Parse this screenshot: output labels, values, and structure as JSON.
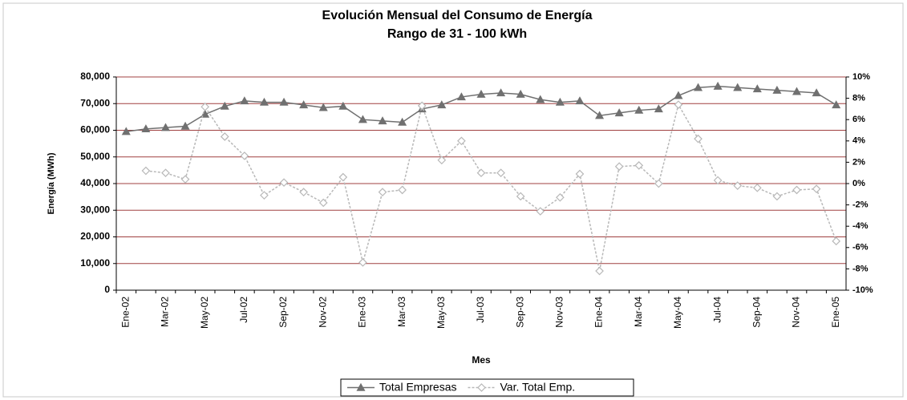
{
  "chart_data": {
    "type": "line",
    "title": "Evolución Mensual del Consumo de Energía",
    "subtitle": "Rango de 31 - 100 kWh",
    "x_label": "Mes",
    "y_label": "Energía (MWh)",
    "categories": [
      "Ene-02",
      null,
      "Mar-02",
      null,
      "May-02",
      null,
      "Jul-02",
      null,
      "Sep-02",
      null,
      "Nov-02",
      null,
      "Ene-03",
      null,
      "Mar-03",
      null,
      "May-03",
      null,
      "Jul-03",
      null,
      "Sep-03",
      null,
      "Nov-03",
      null,
      "Ene-04",
      null,
      "Mar-04",
      null,
      "May-04",
      null,
      "Jul-04",
      null,
      "Sep-04",
      null,
      "Nov-04",
      null,
      "Ene-05"
    ],
    "series": [
      {
        "name": "Total Empresas",
        "color": "#707070",
        "marker": "triangle",
        "values": [
          59500,
          60500,
          61000,
          61500,
          66000,
          69000,
          71000,
          70500,
          70500,
          69500,
          68500,
          69000,
          64000,
          63500,
          63000,
          68000,
          69500,
          72500,
          73500,
          74000,
          73500,
          71500,
          70500,
          71000,
          65500,
          66500,
          67500,
          68000,
          73000,
          76000,
          76500,
          76000,
          75500,
          75000,
          74500,
          74000,
          69500
        ]
      },
      {
        "name": "Var. Total Emp.",
        "color": "#b8b8b8",
        "marker": "diamond",
        "axis": "y2",
        "values": [
          null,
          1.2,
          1.0,
          0.4,
          7.2,
          4.4,
          2.6,
          -1.1,
          0.1,
          -0.8,
          -1.8,
          0.6,
          -7.4,
          -0.8,
          -0.6,
          7.3,
          2.2,
          4.0,
          1.0,
          1.0,
          -1.2,
          -2.6,
          -1.3,
          0.9,
          -8.2,
          1.6,
          1.7,
          0.0,
          7.4,
          4.2,
          0.3,
          -0.2,
          -0.4,
          -1.2,
          -0.6,
          -0.5,
          -5.4
        ]
      }
    ],
    "ylim": [
      0,
      80000
    ],
    "yticks": [
      0,
      {
        "value": 10000,
        "label": "10,000"
      },
      {
        "value": 20000,
        "label": "20,000"
      },
      {
        "value": 30000,
        "label": "30,000"
      },
      {
        "value": 40000,
        "label": "40,000"
      },
      {
        "value": 50000,
        "label": "50,000"
      },
      {
        "value": 60000,
        "label": "60,000"
      },
      {
        "value": 70000,
        "label": "70,000"
      },
      {
        "value": 80000,
        "label": "80,000"
      }
    ],
    "y2lim": [
      -10,
      10
    ],
    "y2ticks": [
      {
        "value": -10,
        "label": "-10%"
      },
      {
        "value": -8,
        "label": "-8%"
      },
      {
        "value": -6,
        "label": "-6%"
      },
      {
        "value": -4,
        "label": "-4%"
      },
      {
        "value": -2,
        "label": "-2%"
      },
      {
        "value": 0,
        "label": "0%"
      },
      {
        "value": 2,
        "label": "2%"
      },
      {
        "value": 4,
        "label": "4%"
      },
      {
        "value": 6,
        "label": "6%"
      },
      {
        "value": 8,
        "label": "8%"
      },
      {
        "value": 10,
        "label": "10%"
      }
    ],
    "grid": true,
    "grid_color": "#a04040",
    "legend": "bottom"
  }
}
